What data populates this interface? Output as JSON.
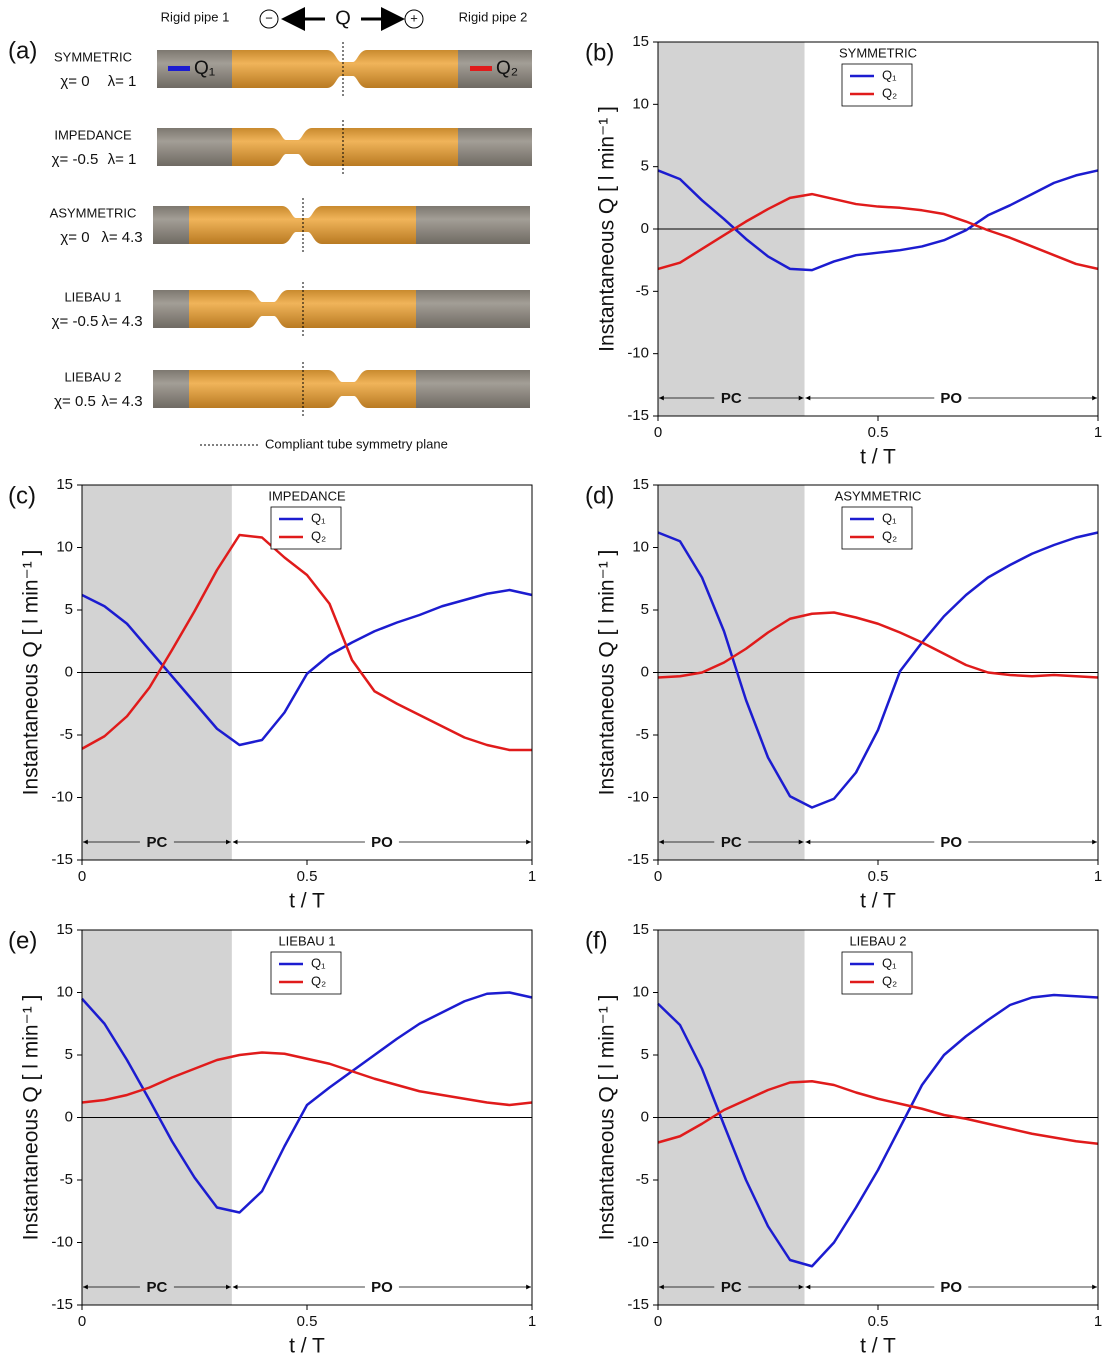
{
  "diagram": {
    "label": "(a)",
    "pipe_left": "Rigid pipe 1",
    "pipe_right": "Rigid pipe 2",
    "minus": "−",
    "plus": "+",
    "flow": "Q",
    "legend_q1": "Q₁",
    "legend_q2": "Q₂",
    "configs": [
      {
        "name": "SYMMETRIC",
        "chi": "χ= 0",
        "lambda": "λ= 1"
      },
      {
        "name": "IMPEDANCE",
        "chi": "χ= -0.5",
        "lambda": "λ= 1"
      },
      {
        "name": "ASYMMETRIC",
        "chi": "χ= 0",
        "lambda": "λ= 4.3"
      },
      {
        "name": "LIEBAU 1",
        "chi": "χ= -0.5",
        "lambda": "λ= 4.3"
      },
      {
        "name": "LIEBAU 2",
        "chi": "χ= 0.5",
        "lambda": "λ= 4.3"
      }
    ],
    "symmetry_note": "Compliant tube symmetry plane"
  },
  "chart_data": [
    {
      "type": "line",
      "panel": "(b)",
      "annotation": "SYMMETRIC",
      "xlabel": "t / T",
      "ylabel": "Instantaneous Q [ l min⁻¹ ]",
      "x": [
        0,
        0.05,
        0.1,
        0.15,
        0.2,
        0.25,
        0.3,
        0.35,
        0.4,
        0.45,
        0.5,
        0.55,
        0.6,
        0.65,
        0.7,
        0.75,
        0.8,
        0.85,
        0.9,
        0.95,
        1
      ],
      "series": [
        {
          "name": "Q₁",
          "color": "#1c1cd0",
          "values": [
            4.7,
            4.0,
            2.3,
            0.8,
            -0.8,
            -2.2,
            -3.2,
            -3.3,
            -2.6,
            -2.1,
            -1.9,
            -1.7,
            -1.4,
            -0.9,
            -0.1,
            1.1,
            1.9,
            2.8,
            3.7,
            4.3,
            4.7
          ]
        },
        {
          "name": "Q₂",
          "color": "#e01b1b",
          "values": [
            -3.2,
            -2.7,
            -1.6,
            -0.5,
            0.6,
            1.6,
            2.5,
            2.8,
            2.4,
            2.0,
            1.8,
            1.7,
            1.5,
            1.2,
            0.6,
            -0.1,
            -0.7,
            -1.4,
            -2.1,
            -2.8,
            -3.2
          ]
        }
      ],
      "phases": [
        {
          "label": "PC",
          "start": 0,
          "end": 0.333,
          "color": "#d3d3d3"
        },
        {
          "label": "PO",
          "start": 0.333,
          "end": 1
        }
      ],
      "xlim": [
        0,
        1
      ],
      "xticks": [
        0,
        0.5,
        1
      ],
      "ylim": [
        -15,
        15
      ],
      "yticks": [
        -15,
        -10,
        -5,
        0,
        5,
        10,
        15
      ],
      "zero_line": true
    },
    {
      "type": "line",
      "panel": "(c)",
      "annotation": "IMPEDANCE",
      "xlabel": "t / T",
      "ylabel": "Instantaneous Q [ l min⁻¹ ]",
      "x": [
        0,
        0.05,
        0.1,
        0.15,
        0.2,
        0.25,
        0.3,
        0.35,
        0.4,
        0.45,
        0.5,
        0.55,
        0.6,
        0.65,
        0.7,
        0.75,
        0.8,
        0.85,
        0.9,
        0.95,
        1
      ],
      "series": [
        {
          "name": "Q₁",
          "color": "#1c1cd0",
          "values": [
            6.2,
            5.3,
            3.9,
            1.8,
            -0.3,
            -2.4,
            -4.5,
            -5.8,
            -5.4,
            -3.2,
            -0.1,
            1.4,
            2.4,
            3.3,
            4.0,
            4.6,
            5.3,
            5.8,
            6.3,
            6.6,
            6.2
          ]
        },
        {
          "name": "Q₂",
          "color": "#e01b1b",
          "values": [
            -6.1,
            -5.1,
            -3.5,
            -1.2,
            1.8,
            4.9,
            8.2,
            11.0,
            10.8,
            9.2,
            7.8,
            5.5,
            1.0,
            -1.5,
            -2.5,
            -3.4,
            -4.3,
            -5.2,
            -5.8,
            -6.2,
            -6.2
          ]
        }
      ],
      "phases": [
        {
          "label": "PC",
          "start": 0,
          "end": 0.333,
          "color": "#d3d3d3"
        },
        {
          "label": "PO",
          "start": 0.333,
          "end": 1
        }
      ],
      "xlim": [
        0,
        1
      ],
      "xticks": [
        0,
        0.5,
        1
      ],
      "ylim": [
        -15,
        15
      ],
      "yticks": [
        -15,
        -10,
        -5,
        0,
        5,
        10,
        15
      ],
      "zero_line": true
    },
    {
      "type": "line",
      "panel": "(d)",
      "annotation": "ASYMMETRIC",
      "xlabel": "t / T",
      "ylabel": "Instantaneous Q [ l min⁻¹ ]",
      "x": [
        0,
        0.05,
        0.1,
        0.15,
        0.2,
        0.25,
        0.3,
        0.35,
        0.4,
        0.45,
        0.5,
        0.55,
        0.6,
        0.65,
        0.7,
        0.75,
        0.8,
        0.85,
        0.9,
        0.95,
        1
      ],
      "series": [
        {
          "name": "Q₁",
          "color": "#1c1cd0",
          "values": [
            11.2,
            10.5,
            7.6,
            3.3,
            -2.2,
            -6.8,
            -9.9,
            -10.8,
            -10.1,
            -8.0,
            -4.6,
            0.1,
            2.4,
            4.5,
            6.2,
            7.6,
            8.6,
            9.5,
            10.2,
            10.8,
            11.2
          ]
        },
        {
          "name": "Q₂",
          "color": "#e01b1b",
          "values": [
            -0.4,
            -0.3,
            0.0,
            0.8,
            1.9,
            3.2,
            4.3,
            4.7,
            4.8,
            4.4,
            3.9,
            3.2,
            2.4,
            1.5,
            0.6,
            0.0,
            -0.2,
            -0.3,
            -0.2,
            -0.3,
            -0.4
          ]
        }
      ],
      "phases": [
        {
          "label": "PC",
          "start": 0,
          "end": 0.333,
          "color": "#d3d3d3"
        },
        {
          "label": "PO",
          "start": 0.333,
          "end": 1
        }
      ],
      "xlim": [
        0,
        1
      ],
      "xticks": [
        0,
        0.5,
        1
      ],
      "ylim": [
        -15,
        15
      ],
      "yticks": [
        -15,
        -10,
        -5,
        0,
        5,
        10,
        15
      ],
      "zero_line": true
    },
    {
      "type": "line",
      "panel": "(e)",
      "annotation": "LIEBAU 1",
      "xlabel": "t / T",
      "ylabel": "Instantaneous Q [ l min⁻¹ ]",
      "x": [
        0,
        0.05,
        0.1,
        0.15,
        0.2,
        0.25,
        0.3,
        0.35,
        0.4,
        0.45,
        0.5,
        0.55,
        0.6,
        0.65,
        0.7,
        0.75,
        0.8,
        0.85,
        0.9,
        0.95,
        1
      ],
      "series": [
        {
          "name": "Q₁",
          "color": "#1c1cd0",
          "values": [
            9.5,
            7.5,
            4.6,
            1.4,
            -1.9,
            -4.8,
            -7.2,
            -7.6,
            -5.9,
            -2.3,
            1.0,
            2.4,
            3.7,
            5.0,
            6.3,
            7.5,
            8.4,
            9.3,
            9.9,
            10.0,
            9.6
          ]
        },
        {
          "name": "Q₂",
          "color": "#e01b1b",
          "values": [
            1.2,
            1.4,
            1.8,
            2.4,
            3.2,
            3.9,
            4.6,
            5.0,
            5.2,
            5.1,
            4.7,
            4.3,
            3.7,
            3.1,
            2.6,
            2.1,
            1.8,
            1.5,
            1.2,
            1.0,
            1.2
          ]
        }
      ],
      "phases": [
        {
          "label": "PC",
          "start": 0,
          "end": 0.333,
          "color": "#d3d3d3"
        },
        {
          "label": "PO",
          "start": 0.333,
          "end": 1
        }
      ],
      "xlim": [
        0,
        1
      ],
      "xticks": [
        0,
        0.5,
        1
      ],
      "ylim": [
        -15,
        15
      ],
      "yticks": [
        -15,
        -10,
        -5,
        0,
        5,
        10,
        15
      ],
      "zero_line": true
    },
    {
      "type": "line",
      "panel": "(f)",
      "annotation": "LIEBAU 2",
      "xlabel": "t / T",
      "ylabel": "Instantaneous Q [ l min⁻¹ ]",
      "x": [
        0,
        0.05,
        0.1,
        0.15,
        0.2,
        0.25,
        0.3,
        0.35,
        0.4,
        0.45,
        0.5,
        0.55,
        0.6,
        0.65,
        0.7,
        0.75,
        0.8,
        0.85,
        0.9,
        0.95,
        1
      ],
      "series": [
        {
          "name": "Q₁",
          "color": "#1c1cd0",
          "values": [
            9.1,
            7.4,
            3.9,
            -0.6,
            -5.0,
            -8.7,
            -11.4,
            -11.9,
            -10.0,
            -7.2,
            -4.2,
            -0.8,
            2.6,
            5.0,
            6.5,
            7.8,
            9.0,
            9.6,
            9.8,
            9.7,
            9.6
          ]
        },
        {
          "name": "Q₂",
          "color": "#e01b1b",
          "values": [
            -2.0,
            -1.5,
            -0.5,
            0.6,
            1.4,
            2.2,
            2.8,
            2.9,
            2.6,
            2.0,
            1.5,
            1.1,
            0.7,
            0.2,
            -0.1,
            -0.5,
            -0.9,
            -1.3,
            -1.6,
            -1.9,
            -2.1
          ]
        }
      ],
      "phases": [
        {
          "label": "PC",
          "start": 0,
          "end": 0.333,
          "color": "#d3d3d3"
        },
        {
          "label": "PO",
          "start": 0.333,
          "end": 1
        }
      ],
      "xlim": [
        0,
        1
      ],
      "xticks": [
        0,
        0.5,
        1
      ],
      "ylim": [
        -15,
        15
      ],
      "yticks": [
        -15,
        -10,
        -5,
        0,
        5,
        10,
        15
      ],
      "zero_line": true
    }
  ]
}
